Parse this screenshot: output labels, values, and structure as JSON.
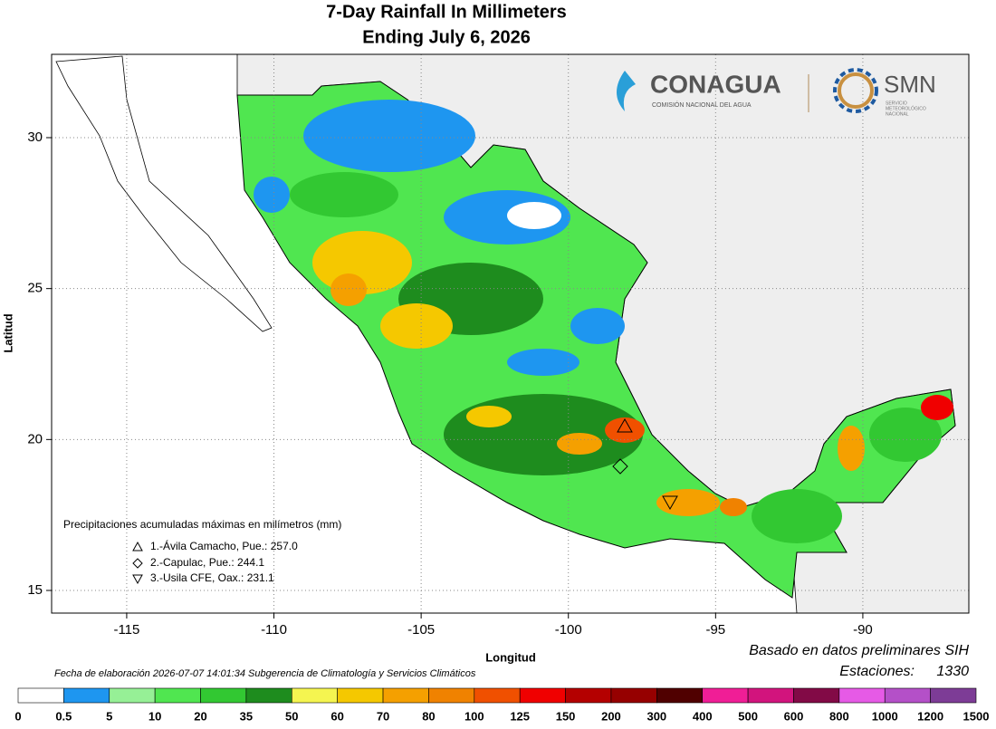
{
  "title": {
    "line1": "7-Day Rainfall In Millimeters",
    "line2": "Ending July 6, 2026"
  },
  "logos": {
    "conagua": "CONAGUA",
    "conagua_sub": "COMISIÓN NACIONAL DEL AGUA",
    "smn": "SMN",
    "smn_sub": [
      "SERVICIO",
      "METEOROLÓGICO",
      "NACIONAL"
    ]
  },
  "map": {
    "xlabel": "Longitud",
    "ylabel": "Latitud",
    "xlim": [
      -117.55,
      -86.4
    ],
    "ylim": [
      14.25,
      32.76
    ],
    "xticks": [
      -115,
      -110,
      -105,
      -100,
      -95,
      -90
    ],
    "yticks": [
      15,
      20,
      25,
      30
    ],
    "grid": true
  },
  "maxima": {
    "heading": "Precipitaciones acumuladas máximas en milímetros (mm)",
    "items": [
      "1.-Ávila Camacho, Pue.: 257.0",
      "2.-Capulac, Pue.: 244.1",
      "3.-Usila CFE, Oax.: 231.1"
    ]
  },
  "legend": {
    "breaks": [
      0,
      0.5,
      5,
      10,
      20,
      35,
      50,
      60,
      70,
      80,
      100,
      125,
      150,
      200,
      300,
      400,
      500,
      600,
      800,
      1000,
      1200,
      1500
    ],
    "colors": [
      "#ffffff",
      "#1e96f0",
      "#96f096",
      "#50e650",
      "#32c832",
      "#1e8c1e",
      "#f5f550",
      "#f5c800",
      "#f5a000",
      "#f08200",
      "#f05000",
      "#f00000",
      "#b40000",
      "#960000",
      "#500000",
      "#f01e96",
      "#d2147d",
      "#820a46",
      "#e65ae6",
      "#b450c8",
      "#7d3c96",
      "#3c3c96"
    ]
  },
  "footer": {
    "date": "Fecha de elaboración 2026-07-07 14:01:34 Subgerencia de Climatología y Servicios Climáticos",
    "source": "Basado en datos preliminares SIH",
    "stations_label": "Estaciones:",
    "stations": 1330
  }
}
